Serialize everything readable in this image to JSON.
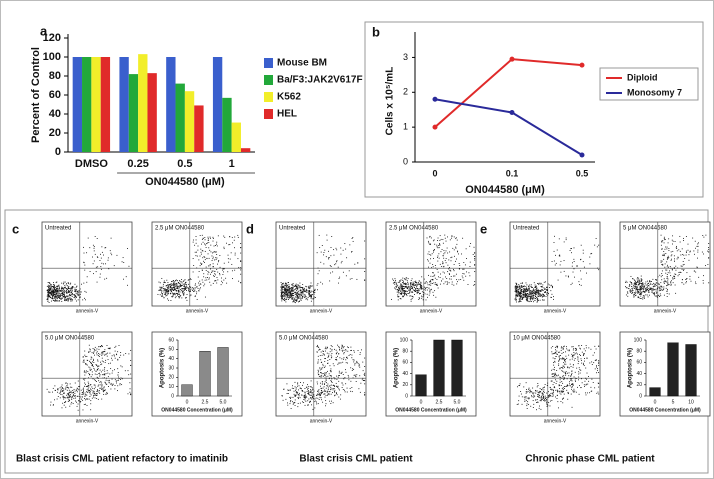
{
  "chart_data": [
    {
      "type": "bar",
      "panel": "a",
      "ylabel": "Percent of Control",
      "xlabel": "ON044580 (μM)",
      "categories": [
        "DMSO",
        "0.25",
        "0.5",
        "1"
      ],
      "series": [
        {
          "name": "Mouse BM",
          "color": "#3a5fcd",
          "values": [
            100,
            100,
            100,
            100
          ]
        },
        {
          "name": "Ba/F3:JAK2V617F",
          "color": "#22a83a",
          "values": [
            100,
            82,
            72,
            57
          ]
        },
        {
          "name": "K562",
          "color": "#f2ee2a",
          "values": [
            100,
            103,
            64,
            31
          ]
        },
        {
          "name": "HEL",
          "color": "#e02a2a",
          "values": [
            100,
            83,
            49,
            4
          ]
        }
      ],
      "ylim": [
        0,
        120
      ],
      "yticks": [
        0,
        20,
        40,
        60,
        80,
        100,
        120
      ]
    },
    {
      "type": "line",
      "panel": "b",
      "ylabel": "Cells x 10⁵/mL",
      "xlabel": "ON044580 (μM)",
      "categories": [
        "0",
        "0.1",
        "0.5"
      ],
      "series": [
        {
          "name": "Diploid",
          "color": "#e02a2a",
          "values": [
            1,
            2.95,
            2.78
          ]
        },
        {
          "name": "Monosomy 7",
          "color": "#2a2a9a",
          "values": [
            1.8,
            1.42,
            0.2
          ]
        }
      ],
      "ylim": [
        0,
        3.5
      ],
      "yticks": [
        0,
        1,
        2,
        3
      ]
    },
    {
      "type": "flow",
      "panel": "c",
      "plot_titles": [
        "Untreated",
        "2.5 μM ON044580",
        "5.0 μM ON044580"
      ],
      "scatter_xlabel": "annexin-V",
      "caption": "Blast crisis CML patient refactory to imatinib",
      "ylabel": "Apoptosis (%)",
      "xlabel": "ON044580 Concentration (μM)",
      "categories": [
        "0",
        "2.5",
        "5.0"
      ],
      "values": [
        12,
        48,
        52
      ],
      "color": "#8a8a8a",
      "ylim": [
        0,
        60
      ],
      "yticks": [
        0,
        10,
        20,
        30,
        40,
        50,
        60
      ]
    },
    {
      "type": "flow",
      "panel": "d",
      "plot_titles": [
        "Untreated",
        "2.5 μM ON044580",
        "5.0 μM ON044580"
      ],
      "scatter_xlabel": "annexin-V",
      "caption": "Blast crisis CML patient",
      "ylabel": "Apoptosis (%)",
      "xlabel": "ON044580 Concentration (μM)",
      "categories": [
        "0",
        "2.5",
        "5.0"
      ],
      "values": [
        38,
        100,
        100
      ],
      "color": "#222222",
      "ylim": [
        0,
        100
      ],
      "yticks": [
        0,
        20,
        40,
        60,
        80,
        100
      ]
    },
    {
      "type": "flow",
      "panel": "e",
      "plot_titles": [
        "Untreated",
        "5 μM ON044580",
        "10 μM ON044580"
      ],
      "scatter_xlabel": "annexin-V",
      "caption": "Chronic phase CML patient",
      "ylabel": "Apoptosis (%)",
      "xlabel": "ON044580 Concentration (μM)",
      "categories": [
        "0",
        "5",
        "10"
      ],
      "values": [
        15,
        95,
        92
      ],
      "color": "#222222",
      "ylim": [
        0,
        100
      ],
      "yticks": [
        0,
        20,
        40,
        60,
        80,
        100
      ]
    }
  ]
}
